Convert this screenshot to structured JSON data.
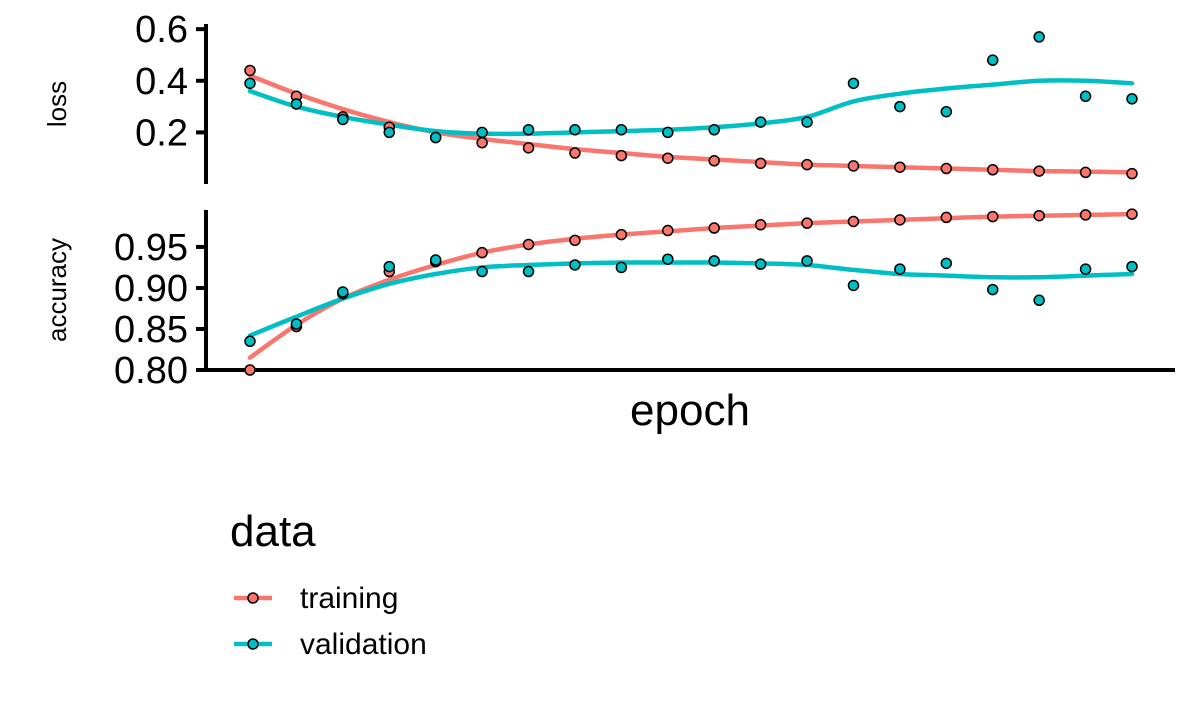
{
  "chart_data": {
    "type": "line",
    "xlabel": "epoch",
    "legend": {
      "title": "data",
      "placement": "bottom-left",
      "entries": [
        "training",
        "validation"
      ]
    },
    "colors": {
      "training": "#F8766D",
      "validation": "#00BFC4"
    },
    "x": [
      1,
      2,
      3,
      4,
      5,
      6,
      7,
      8,
      9,
      10,
      11,
      12,
      13,
      14,
      15,
      16,
      17,
      18,
      19,
      20
    ],
    "panels": [
      {
        "ylabel": "loss",
        "ylim": [
          0.0,
          0.62
        ],
        "yticks": [
          {
            "value": 0.2,
            "label": "0.2"
          },
          {
            "value": 0.4,
            "label": "0.4"
          },
          {
            "value": 0.6,
            "label": "0.6"
          }
        ],
        "series": [
          {
            "name": "training",
            "values": [
              0.44,
              0.34,
              0.26,
              0.22,
              0.18,
              0.16,
              0.14,
              0.12,
              0.11,
              0.1,
              0.09,
              0.08,
              0.075,
              0.07,
              0.065,
              0.06,
              0.055,
              0.05,
              0.045,
              0.04
            ],
            "smooth": [
              0.42,
              0.35,
              0.29,
              0.24,
              0.2,
              0.175,
              0.155,
              0.135,
              0.12,
              0.105,
              0.095,
              0.085,
              0.075,
              0.07,
              0.065,
              0.06,
              0.055,
              0.05,
              0.048,
              0.045
            ]
          },
          {
            "name": "validation",
            "values": [
              0.39,
              0.31,
              0.25,
              0.2,
              0.18,
              0.2,
              0.21,
              0.21,
              0.21,
              0.2,
              0.21,
              0.24,
              0.24,
              0.39,
              0.3,
              0.28,
              0.48,
              0.57,
              0.34,
              0.33
            ],
            "smooth": [
              0.36,
              0.3,
              0.26,
              0.23,
              0.205,
              0.195,
              0.195,
              0.2,
              0.205,
              0.21,
              0.22,
              0.235,
              0.26,
              0.32,
              0.35,
              0.37,
              0.385,
              0.4,
              0.4,
              0.39
            ]
          }
        ]
      },
      {
        "ylabel": "accuracy",
        "ylim": [
          0.8,
          0.995
        ],
        "yticks": [
          {
            "value": 0.8,
            "label": "0.80"
          },
          {
            "value": 0.85,
            "label": "0.85"
          },
          {
            "value": 0.9,
            "label": "0.90"
          },
          {
            "value": 0.95,
            "label": "0.95"
          }
        ],
        "series": [
          {
            "name": "training",
            "values": [
              0.8,
              0.853,
              0.893,
              0.92,
              0.932,
              0.943,
              0.953,
              0.958,
              0.965,
              0.97,
              0.973,
              0.977,
              0.979,
              0.981,
              0.983,
              0.986,
              0.987,
              0.988,
              0.989,
              0.99
            ],
            "smooth": [
              0.815,
              0.855,
              0.887,
              0.91,
              0.928,
              0.943,
              0.953,
              0.96,
              0.965,
              0.969,
              0.973,
              0.976,
              0.979,
              0.981,
              0.983,
              0.985,
              0.987,
              0.988,
              0.989,
              0.99
            ]
          },
          {
            "name": "validation",
            "values": [
              0.835,
              0.856,
              0.895,
              0.926,
              0.934,
              0.92,
              0.92,
              0.928,
              0.925,
              0.935,
              0.933,
              0.929,
              0.933,
              0.903,
              0.923,
              0.93,
              0.898,
              0.885,
              0.923,
              0.926
            ],
            "smooth": [
              0.842,
              0.865,
              0.887,
              0.905,
              0.917,
              0.925,
              0.928,
              0.93,
              0.931,
              0.931,
              0.931,
              0.93,
              0.928,
              0.922,
              0.917,
              0.915,
              0.913,
              0.913,
              0.915,
              0.917
            ]
          }
        ]
      }
    ]
  }
}
